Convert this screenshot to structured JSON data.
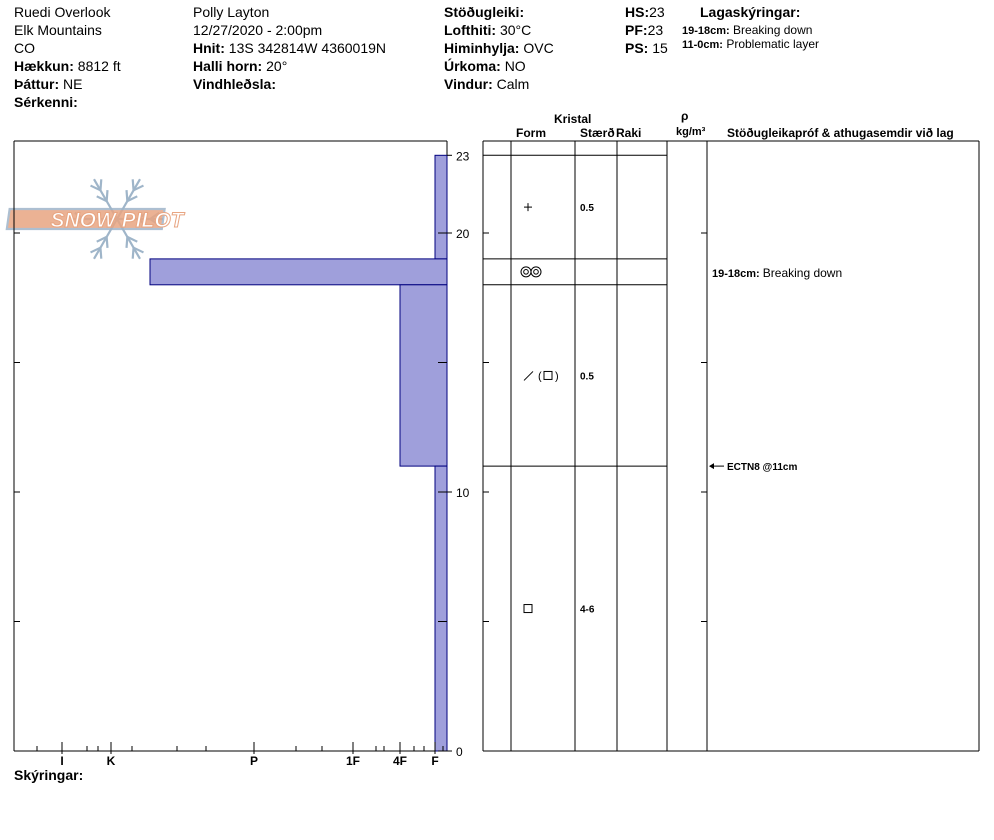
{
  "header": {
    "location": "Ruedi Overlook",
    "range": "Elk Mountains",
    "state": "CO",
    "elevation_label": "Hækkun:",
    "elevation_value": "8812 ft",
    "aspect_label": "Þáttur:",
    "aspect_value": "NE",
    "specifics_label": "Sérkenni:",
    "observer": "Polly Layton",
    "datetime": "12/27/2020 - 2:00pm",
    "coords_label": "Hnit:",
    "coords_value": "13S 342814W 4360019N",
    "slope_label": "Halli horn:",
    "slope_value": "20°",
    "wind_loading_label": "Vindhleðsla:",
    "stability_label": "Stöðugleiki:",
    "air_temp_label": "Lofthiti:",
    "air_temp_value": "30°C",
    "sky_label": "Himinhylja:",
    "sky_value": "OVC",
    "precip_label": "Úrkoma:",
    "precip_value": "NO",
    "wind_label": "Vindur:",
    "wind_value": "Calm",
    "hs_label": "HS:",
    "hs_value": "23",
    "pf_label": "PF:",
    "pf_value": "23",
    "ps_label": "PS:",
    "ps_value": "15",
    "legend_title": "Lagaskýringar:",
    "legend_items": [
      {
        "range": "19-18cm:",
        "text": "Breaking down"
      },
      {
        "range": "11-0cm:",
        "text": "Problematic layer"
      }
    ]
  },
  "logo_text": "SNOW PILOT",
  "footer_label": "Skýringar:",
  "table_headers": {
    "crystal": "Kristal",
    "form": "Form",
    "size": "Stærð",
    "moisture": "Raki",
    "rho": "ρ",
    "density_unit": "kg/m³",
    "comments": "Stöðugleikapróf & athugasemdir við lag"
  },
  "colors": {
    "hardness_fill": "#9f9fdb",
    "hardness_stroke": "#00007f",
    "logo_orange": "#e8a582",
    "logo_blue": "#9fb5c9"
  },
  "chart_data": {
    "type": "bar",
    "orientation": "horizontal",
    "y_unit": "cm",
    "ylim": [
      0,
      23
    ],
    "y_ticks": [
      0,
      10,
      20,
      23
    ],
    "hardness_scale": [
      "I",
      "K",
      "P",
      "1F",
      "4F",
      "F"
    ],
    "layers": [
      {
        "top": 23,
        "bottom": 19,
        "hardness": "F",
        "form_icon": "plus",
        "size": "0.5",
        "comment_range": "",
        "comment_text": ""
      },
      {
        "top": 19,
        "bottom": 18,
        "hardness": "P-",
        "form_icon": "rounded-pair",
        "size": "",
        "comment_range": "19-18cm:",
        "comment_text": "Breaking down"
      },
      {
        "top": 18,
        "bottom": 11,
        "hardness": "4F",
        "form_icon": "slash-square",
        "size": "0.5",
        "comment_range": "",
        "comment_text": ""
      },
      {
        "top": 11,
        "bottom": 0,
        "hardness": "F",
        "form_icon": "square",
        "size": "4-6",
        "comment_range": "",
        "comment_text": ""
      }
    ],
    "stability_tests": [
      {
        "depth": 11,
        "label": "ECTN8 @11cm"
      }
    ]
  }
}
